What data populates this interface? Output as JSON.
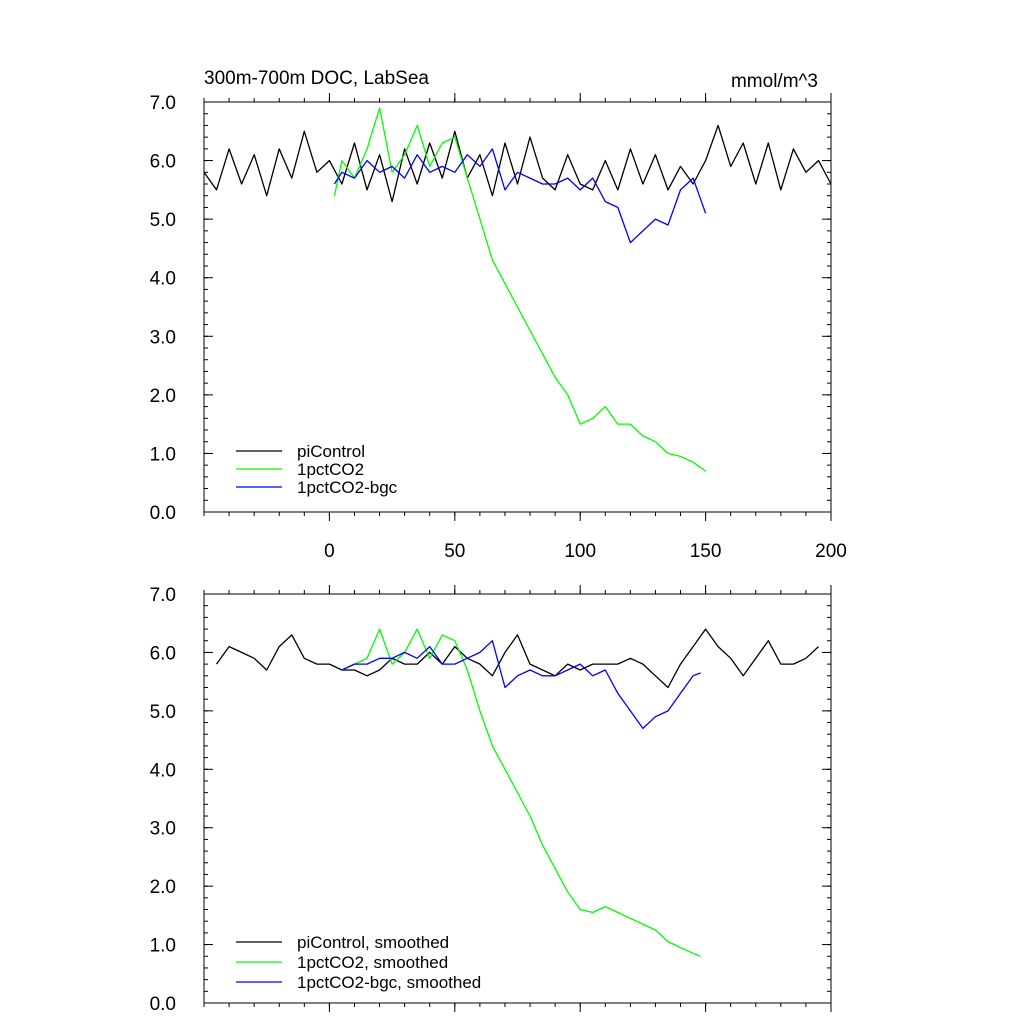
{
  "figure": {
    "title_left": "300m-700m DOC, LabSea",
    "title_right": "mmol/m^3"
  },
  "chart_data": [
    {
      "type": "line",
      "title": "300m-700m DOC, LabSea",
      "units": "mmol/m^3",
      "xlim": [
        -50,
        200
      ],
      "ylim": [
        0,
        7
      ],
      "x_ticks": [
        0,
        50,
        100,
        150,
        200
      ],
      "x_tick_labels": [
        "0",
        "50",
        "100",
        "150",
        "200"
      ],
      "y_ticks": [
        0,
        1,
        2,
        3,
        4,
        5,
        6,
        7
      ],
      "y_tick_labels": [
        "0.0",
        "1.0",
        "2.0",
        "3.0",
        "4.0",
        "5.0",
        "6.0",
        "7.0"
      ],
      "show_x_tick_labels": true,
      "legend_position": "bottom-left",
      "series": [
        {
          "name": "piControl",
          "color": "#000000",
          "x": [
            -50,
            -45,
            -40,
            -35,
            -30,
            -25,
            -20,
            -15,
            -10,
            -5,
            0,
            5,
            10,
            15,
            20,
            25,
            30,
            35,
            40,
            45,
            50,
            55,
            60,
            65,
            70,
            75,
            80,
            85,
            90,
            95,
            100,
            105,
            110,
            115,
            120,
            125,
            130,
            135,
            140,
            145,
            150,
            155,
            160,
            165,
            170,
            175,
            180,
            185,
            190,
            195,
            200
          ],
          "y": [
            5.8,
            5.5,
            6.2,
            5.6,
            6.1,
            5.4,
            6.2,
            5.7,
            6.5,
            5.8,
            6.0,
            5.6,
            6.3,
            5.5,
            6.1,
            5.3,
            6.2,
            5.6,
            6.3,
            5.7,
            6.5,
            5.7,
            6.1,
            5.4,
            6.3,
            5.6,
            6.4,
            5.7,
            5.5,
            6.1,
            5.6,
            5.5,
            6.0,
            5.5,
            6.2,
            5.6,
            6.1,
            5.5,
            5.9,
            5.6,
            6.0,
            6.6,
            5.9,
            6.3,
            5.6,
            6.3,
            5.5,
            6.2,
            5.8,
            6.0,
            5.6
          ]
        },
        {
          "name": "1pctCO2",
          "color": "#00ff00",
          "x": [
            2,
            5,
            10,
            15,
            20,
            25,
            30,
            35,
            40,
            45,
            50,
            55,
            60,
            65,
            70,
            75,
            80,
            85,
            90,
            95,
            100,
            105,
            110,
            115,
            120,
            125,
            130,
            135,
            140,
            145,
            150
          ],
          "y": [
            5.4,
            6.0,
            5.7,
            6.2,
            6.9,
            5.8,
            6.1,
            6.6,
            5.9,
            6.3,
            6.4,
            5.7,
            5.0,
            4.3,
            3.9,
            3.5,
            3.1,
            2.7,
            2.3,
            2.0,
            1.5,
            1.6,
            1.8,
            1.5,
            1.5,
            1.3,
            1.2,
            1.0,
            0.95,
            0.85,
            0.7
          ]
        },
        {
          "name": "1pctCO2-bgc",
          "color": "#0000ff",
          "x": [
            2,
            5,
            10,
            15,
            20,
            25,
            30,
            35,
            40,
            45,
            50,
            55,
            60,
            65,
            70,
            75,
            80,
            85,
            90,
            95,
            100,
            105,
            110,
            115,
            120,
            125,
            130,
            135,
            140,
            145,
            150
          ],
          "y": [
            5.6,
            5.8,
            5.7,
            6.0,
            5.8,
            5.9,
            5.7,
            6.1,
            5.8,
            5.9,
            5.8,
            6.1,
            5.9,
            6.2,
            5.5,
            5.8,
            5.7,
            5.6,
            5.6,
            5.7,
            5.5,
            5.7,
            5.3,
            5.2,
            4.6,
            4.8,
            5.0,
            4.9,
            5.5,
            5.7,
            5.1
          ]
        }
      ]
    },
    {
      "type": "line",
      "xlim": [
        -50,
        200
      ],
      "ylim": [
        0,
        7
      ],
      "x_ticks": [
        0,
        50,
        100,
        150,
        200
      ],
      "y_ticks": [
        0,
        1,
        2,
        3,
        4,
        5,
        6,
        7
      ],
      "y_tick_labels": [
        "0.0",
        "1.0",
        "2.0",
        "3.0",
        "4.0",
        "5.0",
        "6.0",
        "7.0"
      ],
      "show_x_tick_labels": false,
      "legend_position": "bottom-left",
      "series": [
        {
          "name": "piControl, smoothed",
          "color": "#000000",
          "x": [
            -45,
            -40,
            -35,
            -30,
            -25,
            -20,
            -15,
            -10,
            -5,
            0,
            5,
            10,
            15,
            20,
            25,
            30,
            35,
            40,
            45,
            50,
            55,
            60,
            65,
            70,
            75,
            80,
            85,
            90,
            95,
            100,
            105,
            110,
            115,
            120,
            125,
            130,
            135,
            140,
            145,
            150,
            155,
            160,
            165,
            170,
            175,
            180,
            185,
            190,
            195
          ],
          "y": [
            5.8,
            6.1,
            6.0,
            5.9,
            5.7,
            6.1,
            6.3,
            5.9,
            5.8,
            5.8,
            5.7,
            5.7,
            5.6,
            5.7,
            5.9,
            5.8,
            5.8,
            6.0,
            5.8,
            6.1,
            5.9,
            5.8,
            5.6,
            6.0,
            6.3,
            5.8,
            5.7,
            5.6,
            5.8,
            5.7,
            5.8,
            5.8,
            5.8,
            5.9,
            5.8,
            5.6,
            5.4,
            5.8,
            6.1,
            6.4,
            6.1,
            5.9,
            5.6,
            5.9,
            6.2,
            5.8,
            5.8,
            5.9,
            6.1
          ]
        },
        {
          "name": "1pctCO2, smoothed",
          "color": "#00ff00",
          "x": [
            5,
            10,
            15,
            20,
            25,
            30,
            35,
            40,
            45,
            50,
            55,
            60,
            65,
            70,
            75,
            80,
            85,
            90,
            95,
            100,
            105,
            110,
            115,
            120,
            125,
            130,
            135,
            140,
            145,
            148
          ],
          "y": [
            5.7,
            5.8,
            5.9,
            6.4,
            5.8,
            6.0,
            6.4,
            5.9,
            6.3,
            6.2,
            5.7,
            5.0,
            4.4,
            4.0,
            3.6,
            3.2,
            2.7,
            2.3,
            1.9,
            1.6,
            1.55,
            1.65,
            1.55,
            1.45,
            1.35,
            1.25,
            1.05,
            0.95,
            0.85,
            0.8
          ]
        },
        {
          "name": "1pctCO2-bgc, smoothed",
          "color": "#0000ff",
          "x": [
            5,
            10,
            15,
            20,
            25,
            30,
            35,
            40,
            45,
            50,
            55,
            60,
            65,
            70,
            75,
            80,
            85,
            90,
            95,
            100,
            105,
            110,
            115,
            120,
            125,
            130,
            135,
            140,
            145,
            148
          ],
          "y": [
            5.7,
            5.8,
            5.8,
            5.9,
            5.9,
            6.0,
            5.9,
            6.1,
            5.8,
            5.8,
            5.9,
            6.0,
            6.2,
            5.4,
            5.6,
            5.7,
            5.6,
            5.6,
            5.7,
            5.8,
            5.6,
            5.7,
            5.3,
            5.0,
            4.7,
            4.9,
            5.0,
            5.3,
            5.6,
            5.65
          ]
        }
      ]
    }
  ]
}
